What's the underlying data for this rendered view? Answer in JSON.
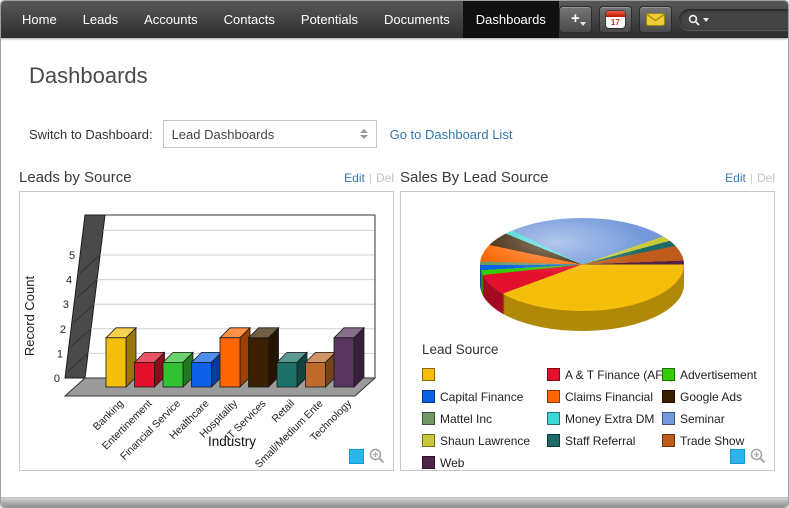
{
  "nav": {
    "tabs": [
      {
        "label": "Home",
        "active": false
      },
      {
        "label": "Leads",
        "active": false
      },
      {
        "label": "Accounts",
        "active": false
      },
      {
        "label": "Contacts",
        "active": false
      },
      {
        "label": "Potentials",
        "active": false
      },
      {
        "label": "Documents",
        "active": false
      },
      {
        "label": "Dashboards",
        "active": true
      }
    ]
  },
  "toolbar": {
    "add_label": "+",
    "calendar_day": "17",
    "search_value": "",
    "search_placeholder": ""
  },
  "page": {
    "title": "Dashboards"
  },
  "switcher": {
    "label": "Switch to Dashboard:",
    "selected": "Lead Dashboards",
    "link": "Go to Dashboard List"
  },
  "panels": [
    {
      "title": "Leads by Source",
      "edit": "Edit",
      "del": "Del"
    },
    {
      "title": "Sales By Lead Source",
      "edit": "Edit",
      "del": "Del"
    }
  ],
  "icons": {
    "add": "plus-icon",
    "calendar": "calendar-icon",
    "mail": "mail-icon",
    "search": "search-icon",
    "zoom": "zoom-in-icon",
    "color": "cyan-square-icon"
  },
  "colors": {
    "link": "#3475AF",
    "accent_cyan": "#2AB4EC",
    "nav_bg": "#3a3a3a",
    "active_tab_bg": "#101010"
  },
  "chart_data": [
    {
      "type": "bar",
      "style": "3d",
      "title": "Leads by Source",
      "xlabel": "Industry",
      "ylabel": "Record Count",
      "categories": [
        "Banking",
        "Entertinement",
        "Financial Service",
        "Healthcare",
        "Hospitality",
        "IT Services",
        "Retail",
        "Small/Medium Ente",
        "Technology"
      ],
      "values": [
        2,
        1,
        1,
        1,
        2,
        2,
        1,
        1,
        2
      ],
      "colors": [
        "#F5BE0B",
        "#E3112C",
        "#33C133",
        "#0B61E8",
        "#FF6600",
        "#3B2000",
        "#1C7168",
        "#BF6A2A",
        "#58365E"
      ],
      "ylim": [
        0,
        5
      ],
      "yticks": [
        0,
        1,
        2,
        3,
        4,
        5
      ],
      "grid": true,
      "legend_position": "none"
    },
    {
      "type": "pie",
      "style": "3d",
      "title": "Sales By Lead Source",
      "legend_title": "Lead Source",
      "legend_position": "bottom",
      "slices": [
        {
          "label": "",
          "color": "#F5BE0B",
          "percent": 44.4
        },
        {
          "label": "A & T Finance (AFF)",
          "color": "#E3112C",
          "percent": 3.9
        },
        {
          "label": "Advertisement",
          "color": "#33CC00",
          "percent": 0.8
        },
        {
          "label": "Capital Finance",
          "color": "#0B61E8",
          "percent": 0.8
        },
        {
          "label": "Mattel Inc",
          "color": "#719763",
          "percent": 0.6
        },
        {
          "label": "Claims Financial",
          "color": "#FF6600",
          "percent": 2.8
        },
        {
          "label": "Google Ads",
          "color": "#3B2000",
          "percent": 2.8
        },
        {
          "label": "Money Extra DM",
          "color": "#3ED6D6",
          "percent": 1.1
        },
        {
          "label": "Seminar",
          "color": "#7399DB",
          "percent": 37.5
        },
        {
          "label": "Shaun Lawrence",
          "color": "#C8C83C",
          "percent": 1.1
        },
        {
          "label": "Staff Referral",
          "color": "#1C6B66",
          "percent": 1.1
        },
        {
          "label": "Trade Show",
          "color": "#BE5B1D",
          "percent": 2.5
        },
        {
          "label": "Web",
          "color": "#4F2446",
          "percent": 0.6
        }
      ],
      "legend_order": [
        0,
        1,
        2,
        3,
        5,
        6,
        4,
        7,
        8,
        9,
        10,
        11,
        12
      ]
    }
  ]
}
